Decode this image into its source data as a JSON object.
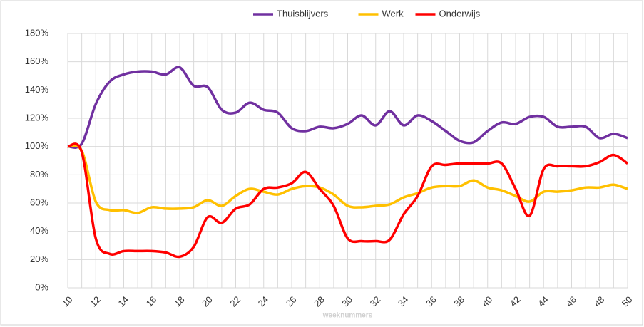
{
  "chart_data": {
    "type": "line",
    "x_label": "weeknummers",
    "categories": [
      "10",
      null,
      "12",
      null,
      "14",
      null,
      "16",
      null,
      "18",
      null,
      "20",
      null,
      "22",
      null,
      "24",
      null,
      "26",
      null,
      "28",
      null,
      "30",
      null,
      "32",
      null,
      "34",
      null,
      "36",
      null,
      "38",
      null,
      "40",
      null,
      "42",
      null,
      "44",
      null,
      "46",
      null,
      "48",
      null,
      "50"
    ],
    "series": [
      {
        "name": "Thuisblijvers",
        "color": "#7030a0",
        "values": [
          100,
          102,
          130,
          146,
          151,
          153,
          153,
          151,
          156,
          143,
          142,
          126,
          124,
          131,
          126,
          124,
          113,
          111,
          114,
          113,
          116,
          122,
          115,
          125,
          115,
          122,
          118,
          111,
          104,
          103,
          111,
          117,
          116,
          121,
          121,
          114,
          114,
          114,
          106,
          109,
          106
        ]
      },
      {
        "name": "Werk",
        "color": "#ffc000",
        "values": [
          100,
          97,
          61,
          55,
          55,
          53,
          57,
          56,
          56,
          57,
          62,
          58,
          65,
          70,
          68,
          66,
          70,
          72,
          71,
          66,
          58,
          57,
          58,
          59,
          64,
          67,
          71,
          72,
          72,
          76,
          71,
          69,
          65,
          61,
          68,
          68,
          69,
          71,
          71,
          73,
          70
        ]
      },
      {
        "name": "Onderwijs",
        "color": "#ff0000",
        "values": [
          100,
          96,
          35,
          24,
          26,
          26,
          26,
          25,
          22,
          29,
          50,
          46,
          56,
          59,
          70,
          71,
          74,
          82,
          70,
          58,
          35,
          33,
          33,
          34,
          52,
          65,
          86,
          87,
          88,
          88,
          88,
          88,
          70,
          51,
          84,
          86,
          86,
          86,
          89,
          94,
          88
        ]
      }
    ],
    "ylim": [
      0,
      180
    ],
    "yticks": [
      {
        "value": 0,
        "label": "0%"
      },
      {
        "value": 20,
        "label": "20%"
      },
      {
        "value": 40,
        "label": "40%"
      },
      {
        "value": 60,
        "label": "60%"
      },
      {
        "value": 80,
        "label": "80%"
      },
      {
        "value": 100,
        "label": "100%"
      },
      {
        "value": 120,
        "label": "120%"
      },
      {
        "value": 140,
        "label": "140%"
      },
      {
        "value": 160,
        "label": "160%"
      },
      {
        "value": 180,
        "label": "180%"
      }
    ],
    "grid": true,
    "legend": "top"
  }
}
